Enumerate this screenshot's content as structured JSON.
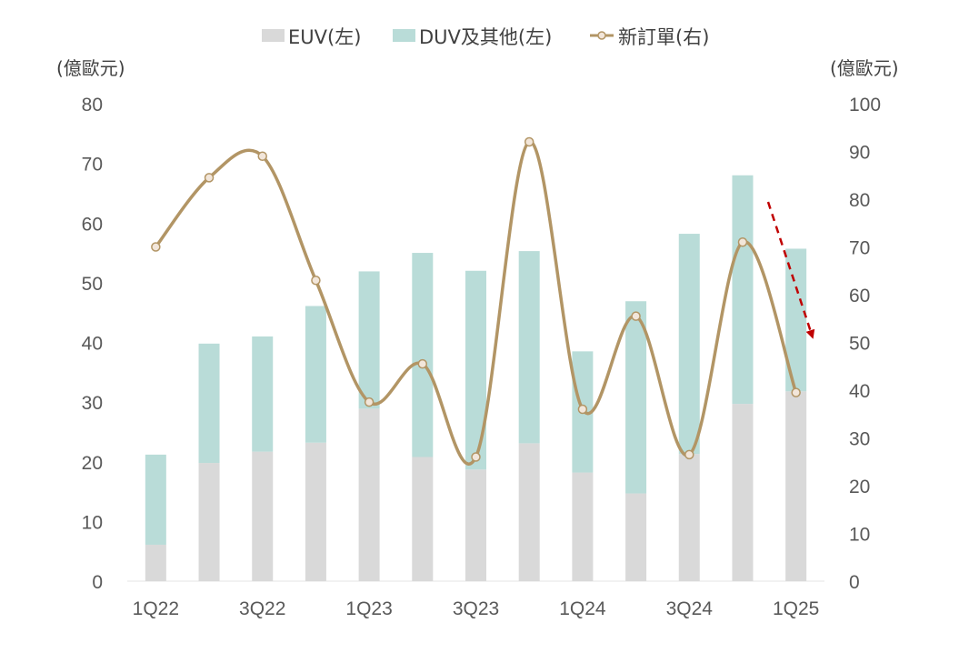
{
  "chart_data": {
    "type": "bar",
    "stacked": true,
    "secondary_type": "line",
    "categories": [
      "1Q22",
      "2Q22",
      "3Q22",
      "4Q22",
      "1Q23",
      "2Q23",
      "3Q23",
      "4Q23",
      "1Q24",
      "2Q24",
      "3Q24",
      "4Q24",
      "1Q25"
    ],
    "tick_labels": [
      "1Q22",
      "",
      "3Q22",
      "",
      "1Q23",
      "",
      "3Q23",
      "",
      "1Q24",
      "",
      "3Q24",
      "",
      "1Q25"
    ],
    "series": [
      {
        "name": "EUV(左)",
        "axis": "left",
        "color": "#d9d9d9",
        "values": [
          6.1,
          19.8,
          21.7,
          23.2,
          28.9,
          20.8,
          18.7,
          23.1,
          18.2,
          14.7,
          21.3,
          29.7,
          31.8
        ]
      },
      {
        "name": "DUV及其他(左)",
        "axis": "left",
        "color": "#b9dcd8",
        "values": [
          15.1,
          20.0,
          19.3,
          22.9,
          23.0,
          34.2,
          33.3,
          32.2,
          20.3,
          32.2,
          36.9,
          38.3,
          23.9
        ]
      },
      {
        "name": "新訂單(右)",
        "axis": "right",
        "type": "line",
        "color": "#b29565",
        "marker_fill": "#f2e6da",
        "values": [
          70,
          84.5,
          89,
          63,
          37.5,
          45.5,
          26,
          92,
          36,
          55.5,
          26.5,
          71,
          39.5
        ]
      }
    ],
    "left_axis": {
      "unit_label": "(億歐元)",
      "ylim": [
        0,
        80
      ],
      "ticks": [
        "0",
        "10",
        "20",
        "30",
        "40",
        "50",
        "60",
        "70",
        "80"
      ]
    },
    "right_axis": {
      "unit_label": "(億歐元)",
      "ylim": [
        0,
        100
      ],
      "ticks": [
        "0",
        "10",
        "20",
        "30",
        "40",
        "50",
        "60",
        "70",
        "80",
        "90",
        "100"
      ]
    },
    "legend_position": "top-center",
    "grid": false,
    "annotation": {
      "type": "arrow",
      "style": "dashed",
      "color": "#c00000",
      "from_category": "4Q24",
      "to_category": "1Q25",
      "direction": "down"
    }
  }
}
